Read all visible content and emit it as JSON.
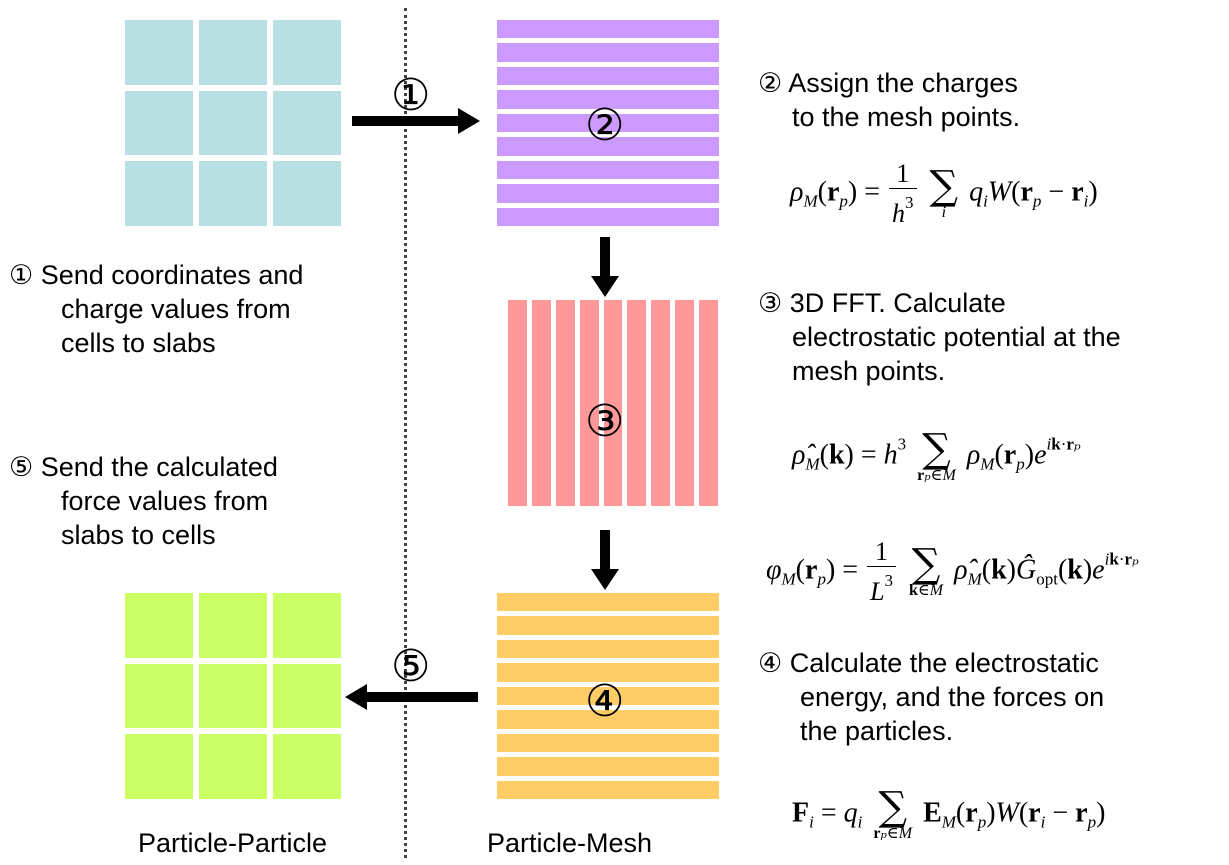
{
  "colors": {
    "pp_input": "#b8dfe1",
    "mesh_charge": "#cc99ff",
    "fft_slab": "#ff9999",
    "mesh_force": "#ffcc66",
    "pp_output": "#ccff66"
  },
  "markers": {
    "m1": "①",
    "m2": "②",
    "m3": "③",
    "m4": "④",
    "m5": "⑤"
  },
  "steps": {
    "s1": [
      "① Send coordinates and",
      "charge values from",
      "cells to slabs"
    ],
    "s5": [
      "⑤ Send the calculated",
      "force values from",
      "slabs to cells"
    ],
    "s2": [
      "② Assign the charges",
      "to the mesh points."
    ],
    "s3": [
      "③ 3D FFT. Calculate",
      "electrostatic potential at the",
      "mesh points."
    ],
    "s4": [
      "④ Calculate the electrostatic",
      "energy, and the forces on",
      "the particles."
    ]
  },
  "bottom_labels": {
    "left": "Particle-Particle",
    "right": "Particle-Mesh"
  }
}
